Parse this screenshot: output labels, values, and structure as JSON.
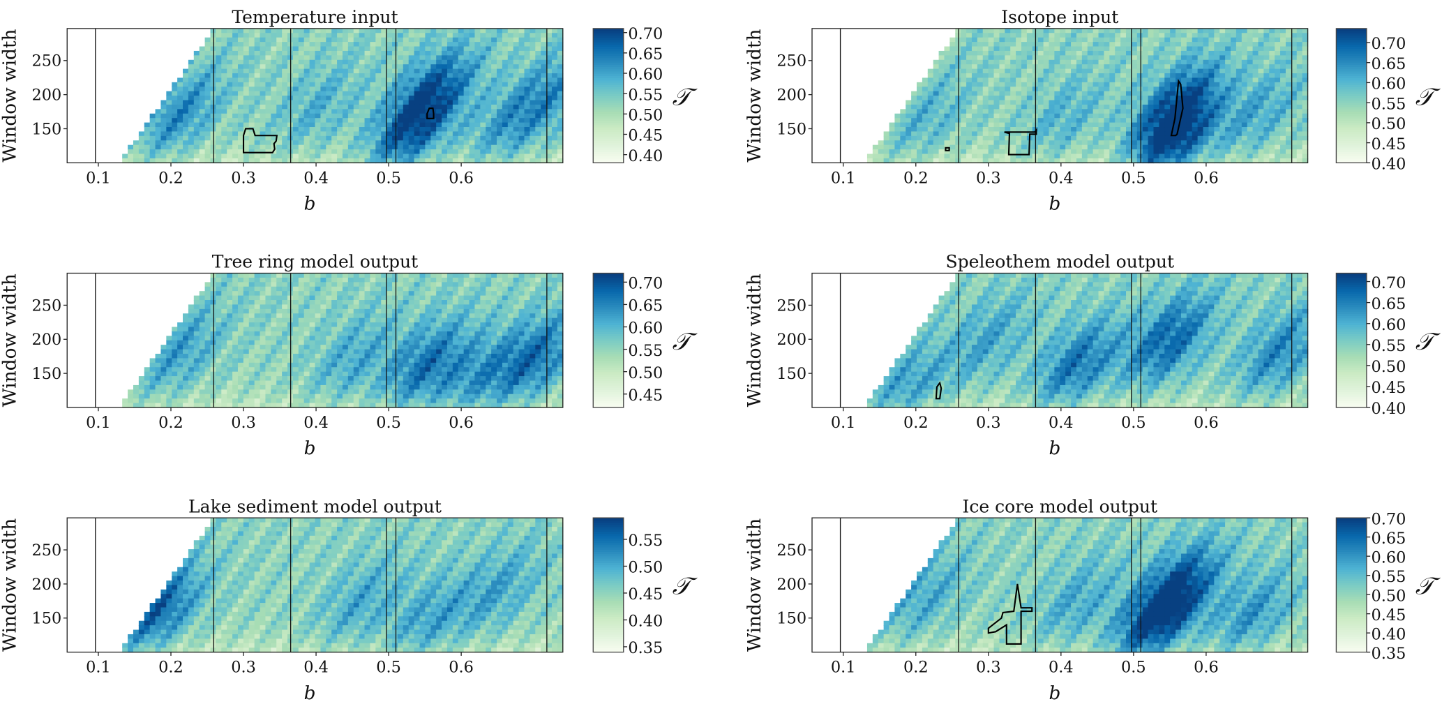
{
  "chart_data": {
    "type": "heatmap",
    "colormap": "GnBu",
    "grid": false,
    "xlabel": "b",
    "ylabel": "Window width",
    "colorbar_label": "𝒯",
    "xlim": [
      0.057,
      0.74
    ],
    "ylim": [
      100,
      297
    ],
    "xticks": [
      "0.1",
      "0.2",
      "0.3",
      "0.4",
      "0.5",
      "0.6"
    ],
    "xtick_values": [
      0.1,
      0.2,
      0.3,
      0.4,
      0.5,
      0.6
    ],
    "yticks": [
      "150",
      "200",
      "250"
    ],
    "ytick_values": [
      150,
      200,
      250
    ],
    "vertical_lines_b": [
      0.096,
      0.259,
      0.365,
      0.497,
      0.51,
      0.718
    ],
    "blank_region_boundary": [
      [
        0.129,
        100
      ],
      [
        0.259,
        297
      ]
    ],
    "panels": [
      {
        "title": "Temperature input",
        "clim": [
          0.38,
          0.71
        ],
        "cbar_ticks": [
          "0.40",
          "0.45",
          "0.50",
          "0.55",
          "0.60",
          "0.65",
          "0.70"
        ],
        "hotspots": [
          [
            0.21,
            170,
            0.9
          ],
          [
            0.56,
            200,
            1.3
          ],
          [
            0.52,
            130,
            1.0
          ],
          [
            0.66,
            150,
            0.6
          ],
          [
            0.72,
            200,
            0.7
          ],
          [
            0.4,
            180,
            0.5
          ]
        ],
        "contours": [
          [
            [
              0.3,
              115
            ],
            [
              0.3,
              140
            ],
            [
              0.303,
              150
            ],
            [
              0.313,
              150
            ],
            [
              0.316,
              140
            ],
            [
              0.346,
              140
            ],
            [
              0.345,
              132
            ],
            [
              0.342,
              128
            ],
            [
              0.343,
              120
            ],
            [
              0.34,
              115
            ]
          ],
          [
            [
              0.553,
              165
            ],
            [
              0.553,
              172
            ],
            [
              0.556,
              180
            ],
            [
              0.561,
              180
            ],
            [
              0.562,
              172
            ],
            [
              0.562,
              165
            ]
          ]
        ]
      },
      {
        "title": "Isotope input",
        "clim": [
          0.4,
          0.735
        ],
        "cbar_ticks": [
          "0.40",
          "0.45",
          "0.50",
          "0.55",
          "0.60",
          "0.65",
          "0.70"
        ],
        "hotspots": [
          [
            0.56,
            180,
            1.4
          ],
          [
            0.55,
            120,
            1.2
          ],
          [
            0.21,
            160,
            0.5
          ],
          [
            0.4,
            160,
            0.5
          ],
          [
            0.67,
            170,
            0.6
          ]
        ],
        "contours": [
          [
            [
              0.241,
              118
            ],
            [
              0.241,
              122
            ],
            [
              0.246,
              122
            ],
            [
              0.246,
              118
            ]
          ],
          [
            [
              0.322,
              145
            ],
            [
              0.329,
              143
            ],
            [
              0.328,
              112
            ],
            [
              0.356,
              112
            ],
            [
              0.357,
              142
            ],
            [
              0.366,
              142
            ],
            [
              0.366,
              148
            ],
            [
              0.364,
              145
            ],
            [
              0.322,
              145
            ]
          ],
          [
            [
              0.552,
              140
            ],
            [
              0.557,
              165
            ],
            [
              0.562,
              220
            ],
            [
              0.565,
              215
            ],
            [
              0.568,
              180
            ],
            [
              0.56,
              142
            ],
            [
              0.558,
              140
            ]
          ]
        ]
      },
      {
        "title": "Tree ring model output",
        "clim": [
          0.42,
          0.72
        ],
        "cbar_ticks": [
          "0.45",
          "0.50",
          "0.55",
          "0.60",
          "0.65",
          "0.70"
        ],
        "hotspots": [
          [
            0.21,
            180,
            0.7
          ],
          [
            0.55,
            160,
            1.1
          ],
          [
            0.7,
            170,
            1.1
          ],
          [
            0.45,
            170,
            0.6
          ],
          [
            0.62,
            140,
            0.7
          ]
        ],
        "contours": []
      },
      {
        "title": "Speleothem model output",
        "clim": [
          0.4,
          0.72
        ],
        "cbar_ticks": [
          "0.40",
          "0.45",
          "0.50",
          "0.55",
          "0.60",
          "0.65",
          "0.70"
        ],
        "hotspots": [
          [
            0.42,
            160,
            1.1
          ],
          [
            0.55,
            200,
            1.2
          ],
          [
            0.7,
            180,
            0.9
          ],
          [
            0.18,
            120,
            0.8
          ],
          [
            0.3,
            200,
            0.6
          ]
        ],
        "contours": [
          [
            [
              0.228,
              113
            ],
            [
              0.229,
              130
            ],
            [
              0.233,
              136
            ],
            [
              0.235,
              128
            ],
            [
              0.233,
              113
            ]
          ]
        ]
      },
      {
        "title": "Lake sediment model output",
        "clim": [
          0.34,
          0.59
        ],
        "cbar_ticks": [
          "0.35",
          "0.40",
          "0.45",
          "0.50",
          "0.55"
        ],
        "hotspots": [
          [
            0.18,
            160,
            1.3
          ],
          [
            0.46,
            170,
            0.6
          ],
          [
            0.55,
            140,
            0.7
          ],
          [
            0.65,
            190,
            0.6
          ]
        ],
        "contours": []
      },
      {
        "title": "Ice core model output",
        "clim": [
          0.35,
          0.7
        ],
        "cbar_ticks": [
          "0.35",
          "0.40",
          "0.45",
          "0.50",
          "0.55",
          "0.60",
          "0.65",
          "0.70"
        ],
        "hotspots": [
          [
            0.56,
            190,
            1.4
          ],
          [
            0.52,
            130,
            1.1
          ],
          [
            0.21,
            180,
            0.6
          ],
          [
            0.66,
            150,
            0.8
          ],
          [
            0.42,
            170,
            0.6
          ]
        ],
        "contours": [
          [
            [
              0.3,
              128
            ],
            [
              0.3,
              135
            ],
            [
              0.318,
              150
            ],
            [
              0.32,
              158
            ],
            [
              0.335,
              160
            ],
            [
              0.34,
              200
            ],
            [
              0.345,
              165
            ],
            [
              0.36,
              165
            ],
            [
              0.36,
              160
            ],
            [
              0.345,
              160
            ],
            [
              0.345,
              112
            ],
            [
              0.325,
              112
            ],
            [
              0.325,
              140
            ],
            [
              0.31,
              130
            ]
          ]
        ]
      }
    ]
  }
}
